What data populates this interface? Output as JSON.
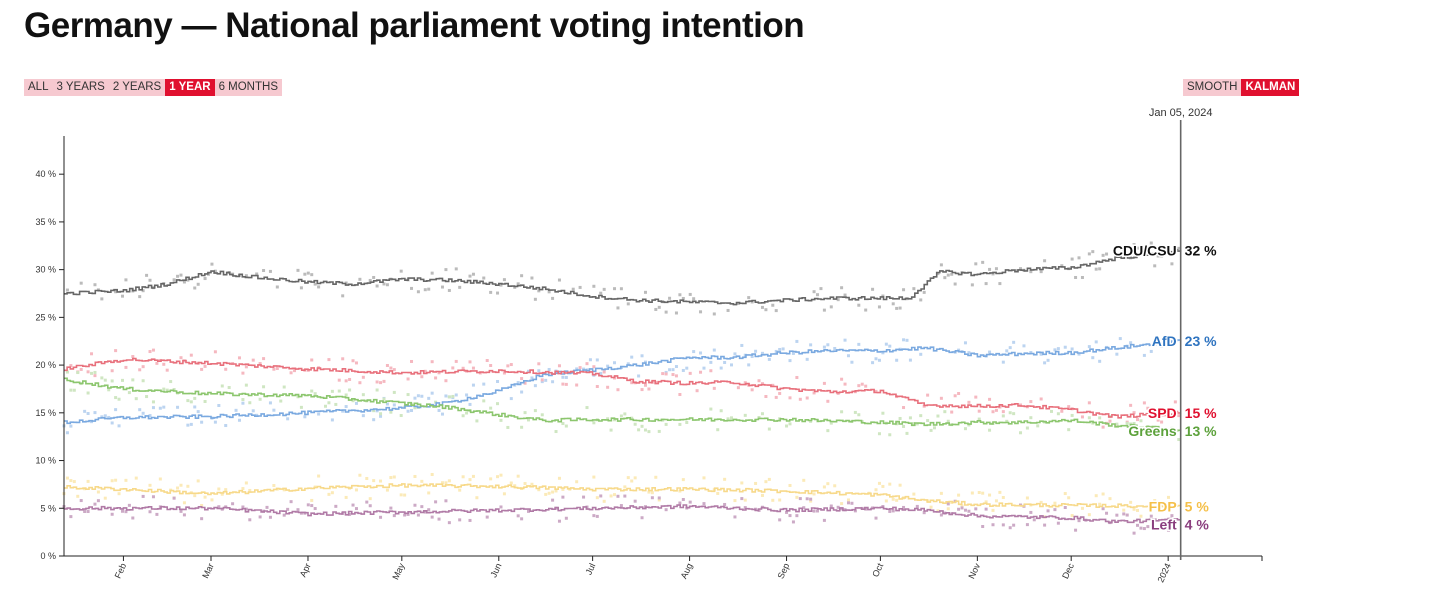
{
  "title": "Germany — National parliament voting intention",
  "range_buttons": [
    {
      "label": "ALL",
      "active": false
    },
    {
      "label": "3 YEARS",
      "active": false
    },
    {
      "label": "2 YEARS",
      "active": false
    },
    {
      "label": "1 YEAR",
      "active": true
    },
    {
      "label": "6 MONTHS",
      "active": false
    }
  ],
  "method_buttons": [
    {
      "label": "SMOOTH",
      "active": false
    },
    {
      "label": "KALMAN",
      "active": true
    }
  ],
  "colors": {
    "accent": "#e0102f",
    "button_bg": "#f6c9d0"
  },
  "chart_data": {
    "type": "line",
    "cursor_date": "Jan 05, 2024",
    "y_ticks": [
      "0 %",
      "5 %",
      "10 %",
      "15 %",
      "20 %",
      "25 %",
      "30 %",
      "35 %",
      "40 %"
    ],
    "ylim": [
      0,
      44
    ],
    "x_start": "2023-01-13",
    "x_end": "2024-01-31",
    "x_ticks": [
      {
        "label": "Feb",
        "date": "2023-02-01"
      },
      {
        "label": "Mar",
        "date": "2023-03-01"
      },
      {
        "label": "Apr",
        "date": "2023-04-01"
      },
      {
        "label": "May",
        "date": "2023-05-01"
      },
      {
        "label": "Jun",
        "date": "2023-06-01"
      },
      {
        "label": "Jul",
        "date": "2023-07-01"
      },
      {
        "label": "Aug",
        "date": "2023-08-01"
      },
      {
        "label": "Sep",
        "date": "2023-09-01"
      },
      {
        "label": "Oct",
        "date": "2023-10-01"
      },
      {
        "label": "Nov",
        "date": "2023-11-01"
      },
      {
        "label": "Dec",
        "date": "2023-12-01"
      },
      {
        "label": "2024",
        "date": "2024-01-01"
      }
    ],
    "series": [
      {
        "name": "CDU/CSU",
        "end_label": "32 %",
        "color": "#666666",
        "label_color": "#111111",
        "dot_color": "#bbbbbb",
        "dates": [
          "2023-01-13",
          "2023-02-01",
          "2023-02-15",
          "2023-03-01",
          "2023-03-15",
          "2023-04-01",
          "2023-04-15",
          "2023-05-01",
          "2023-05-15",
          "2023-06-01",
          "2023-06-15",
          "2023-07-01",
          "2023-07-15",
          "2023-08-01",
          "2023-08-15",
          "2023-09-01",
          "2023-09-15",
          "2023-10-01",
          "2023-10-10",
          "2023-10-20",
          "2023-11-01",
          "2023-11-15",
          "2023-12-01",
          "2023-12-15",
          "2024-01-05"
        ],
        "values": [
          27.5,
          27.8,
          28.5,
          29.8,
          29.2,
          28.7,
          28.5,
          29.0,
          28.9,
          28.5,
          28.0,
          27.2,
          26.8,
          26.6,
          26.5,
          26.8,
          27.0,
          27.0,
          27.0,
          29.8,
          29.5,
          30.0,
          30.2,
          31.2,
          32.0
        ]
      },
      {
        "name": "AfD",
        "end_label": "23 %",
        "color": "#7aa9e0",
        "label_color": "#2f74c0",
        "dot_color": "#bcd4f0",
        "dates": [
          "2023-01-13",
          "2023-02-01",
          "2023-03-01",
          "2023-04-01",
          "2023-05-01",
          "2023-05-15",
          "2023-06-01",
          "2023-06-15",
          "2023-07-01",
          "2023-07-15",
          "2023-08-01",
          "2023-08-15",
          "2023-09-01",
          "2023-09-15",
          "2023-10-01",
          "2023-10-15",
          "2023-11-01",
          "2023-11-15",
          "2023-12-01",
          "2023-12-15",
          "2024-01-05"
        ],
        "values": [
          14.0,
          14.5,
          14.6,
          15.0,
          15.5,
          16.0,
          17.3,
          19.0,
          19.5,
          20.0,
          20.8,
          20.8,
          21.3,
          21.5,
          21.5,
          21.8,
          21.0,
          21.2,
          21.3,
          21.8,
          22.5
        ]
      },
      {
        "name": "SPD",
        "end_label": "15 %",
        "color": "#e8707c",
        "label_color": "#e0102f",
        "dot_color": "#f5b8c0",
        "dates": [
          "2023-01-13",
          "2023-02-01",
          "2023-03-01",
          "2023-04-01",
          "2023-05-01",
          "2023-06-01",
          "2023-07-01",
          "2023-07-15",
          "2023-08-01",
          "2023-08-15",
          "2023-09-01",
          "2023-09-15",
          "2023-10-01",
          "2023-10-15",
          "2023-11-01",
          "2023-11-15",
          "2023-12-01",
          "2023-12-15",
          "2024-01-05"
        ],
        "values": [
          19.6,
          20.6,
          20.2,
          19.6,
          19.2,
          19.4,
          19.1,
          18.3,
          18.1,
          18.2,
          17.5,
          17.2,
          17.3,
          15.8,
          15.7,
          15.8,
          15.3,
          14.6,
          15.0
        ]
      },
      {
        "name": "Greens",
        "end_label": "13 %",
        "color": "#8cc66e",
        "label_color": "#5da23c",
        "dot_color": "#cfe6c2",
        "dates": [
          "2023-01-13",
          "2023-02-01",
          "2023-03-01",
          "2023-04-01",
          "2023-05-01",
          "2023-05-15",
          "2023-06-01",
          "2023-06-15",
          "2023-07-01",
          "2023-08-01",
          "2023-09-01",
          "2023-10-01",
          "2023-10-15",
          "2023-11-01",
          "2023-11-15",
          "2023-12-01",
          "2023-12-15",
          "2024-01-05"
        ],
        "values": [
          18.5,
          17.5,
          17.0,
          16.8,
          16.0,
          15.6,
          14.8,
          14.2,
          14.3,
          14.3,
          14.3,
          14.0,
          13.8,
          14.0,
          14.0,
          14.2,
          13.7,
          13.2
        ]
      },
      {
        "name": "FDP",
        "end_label": "5 %",
        "color": "#f7d98a",
        "label_color": "#f5c04a",
        "dot_color": "#fbeab8",
        "dates": [
          "2023-01-13",
          "2023-02-01",
          "2023-03-01",
          "2023-04-01",
          "2023-05-01",
          "2023-06-01",
          "2023-07-01",
          "2023-08-01",
          "2023-09-01",
          "2023-10-01",
          "2023-10-15",
          "2023-11-01",
          "2023-12-01",
          "2024-01-05"
        ],
        "values": [
          7.2,
          7.0,
          6.5,
          7.1,
          7.4,
          7.3,
          7.0,
          7.0,
          6.8,
          6.4,
          5.8,
          5.4,
          5.3,
          5.2
        ]
      },
      {
        "name": "Left",
        "end_label": "4 %",
        "color": "#b07aa6",
        "label_color": "#8a3e7e",
        "dot_color": "#ccaac6",
        "dates": [
          "2023-01-13",
          "2023-02-01",
          "2023-03-01",
          "2023-04-01",
          "2023-05-01",
          "2023-06-01",
          "2023-07-01",
          "2023-08-01",
          "2023-09-01",
          "2023-10-01",
          "2023-10-15",
          "2023-11-01",
          "2023-12-01",
          "2023-12-15",
          "2024-01-05"
        ],
        "values": [
          5.0,
          5.0,
          5.0,
          4.4,
          4.6,
          4.8,
          5.0,
          5.2,
          4.8,
          5.0,
          4.8,
          4.2,
          4.0,
          3.6,
          3.8
        ]
      }
    ]
  }
}
